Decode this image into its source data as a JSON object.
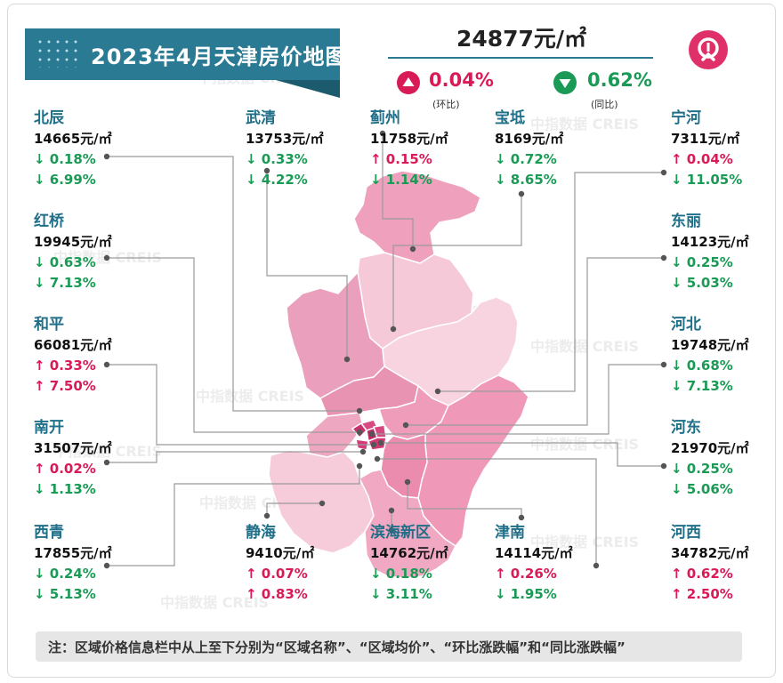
{
  "title": "2023年4月天津房价地图",
  "summary": {
    "avg_price": "24877元/㎡",
    "mom": {
      "value": "0.04%",
      "label": "(环比)",
      "direction": "up"
    },
    "yoy": {
      "value": "0.62%",
      "label": "(同比)",
      "direction": "down"
    }
  },
  "colors": {
    "up": "#d81b56",
    "down": "#1a9a55",
    "name": "#1f6f89",
    "banner": "#2a7a93"
  },
  "districts": [
    {
      "name": "北辰",
      "price": "14665元/㎡",
      "mom": "↓ 0.18%",
      "mom_dir": "down",
      "yoy": "↓ 6.99%",
      "yoy_dir": "down"
    },
    {
      "name": "武清",
      "price": "13753元/㎡",
      "mom": "↓ 0.33%",
      "mom_dir": "down",
      "yoy": "↓ 4.22%",
      "yoy_dir": "down"
    },
    {
      "name": "蓟州",
      "price": "11758元/㎡",
      "mom": "↑ 0.15%",
      "mom_dir": "up",
      "yoy": "↓ 1.14%",
      "yoy_dir": "down"
    },
    {
      "name": "宝坻",
      "price": "8169元/㎡",
      "mom": "↓ 0.72%",
      "mom_dir": "down",
      "yoy": "↓ 8.65%",
      "yoy_dir": "down"
    },
    {
      "name": "宁河",
      "price": "7311元/㎡",
      "mom": "↑ 0.04%",
      "mom_dir": "up",
      "yoy": "↓ 11.05%",
      "yoy_dir": "down"
    },
    {
      "name": "红桥",
      "price": "19945元/㎡",
      "mom": "↓ 0.63%",
      "mom_dir": "down",
      "yoy": "↓ 7.13%",
      "yoy_dir": "down"
    },
    {
      "name": "东丽",
      "price": "14123元/㎡",
      "mom": "↓ 0.25%",
      "mom_dir": "down",
      "yoy": "↓ 5.03%",
      "yoy_dir": "down"
    },
    {
      "name": "和平",
      "price": "66081元/㎡",
      "mom": "↑ 0.33%",
      "mom_dir": "up",
      "yoy": "↑ 7.50%",
      "yoy_dir": "up"
    },
    {
      "name": "河北",
      "price": "19748元/㎡",
      "mom": "↓ 0.68%",
      "mom_dir": "down",
      "yoy": "↓ 7.13%",
      "yoy_dir": "down"
    },
    {
      "name": "南开",
      "price": "31507元/㎡",
      "mom": "↑ 0.02%",
      "mom_dir": "up",
      "yoy": "↓ 1.13%",
      "yoy_dir": "down"
    },
    {
      "name": "河东",
      "price": "21970元/㎡",
      "mom": "↓ 0.25%",
      "mom_dir": "down",
      "yoy": "↓ 5.06%",
      "yoy_dir": "down"
    },
    {
      "name": "西青",
      "price": "17855元/㎡",
      "mom": "↓ 0.24%",
      "mom_dir": "down",
      "yoy": "↓ 5.13%",
      "yoy_dir": "down"
    },
    {
      "name": "静海",
      "price": "9410元/㎡",
      "mom": "↑ 0.07%",
      "mom_dir": "up",
      "yoy": "↑ 0.83%",
      "yoy_dir": "up"
    },
    {
      "name": "滨海新区",
      "price": "14762元/㎡",
      "mom": "↓ 0.18%",
      "mom_dir": "down",
      "yoy": "↓ 3.11%",
      "yoy_dir": "down"
    },
    {
      "name": "津南",
      "price": "14114元/㎡",
      "mom": "↑ 0.26%",
      "mom_dir": "up",
      "yoy": "↓ 1.95%",
      "yoy_dir": "down"
    },
    {
      "name": "河西",
      "price": "34782元/㎡",
      "mom": "↑ 0.62%",
      "mom_dir": "up",
      "yoy": "↑ 2.50%",
      "yoy_dir": "up"
    }
  ],
  "note": "注：区域价格信息栏中从上至下分别为“区域名称”、“区域均价”、“环比涨跌幅”和“同比涨跌幅”",
  "watermark": "中指数据 CREIS"
}
